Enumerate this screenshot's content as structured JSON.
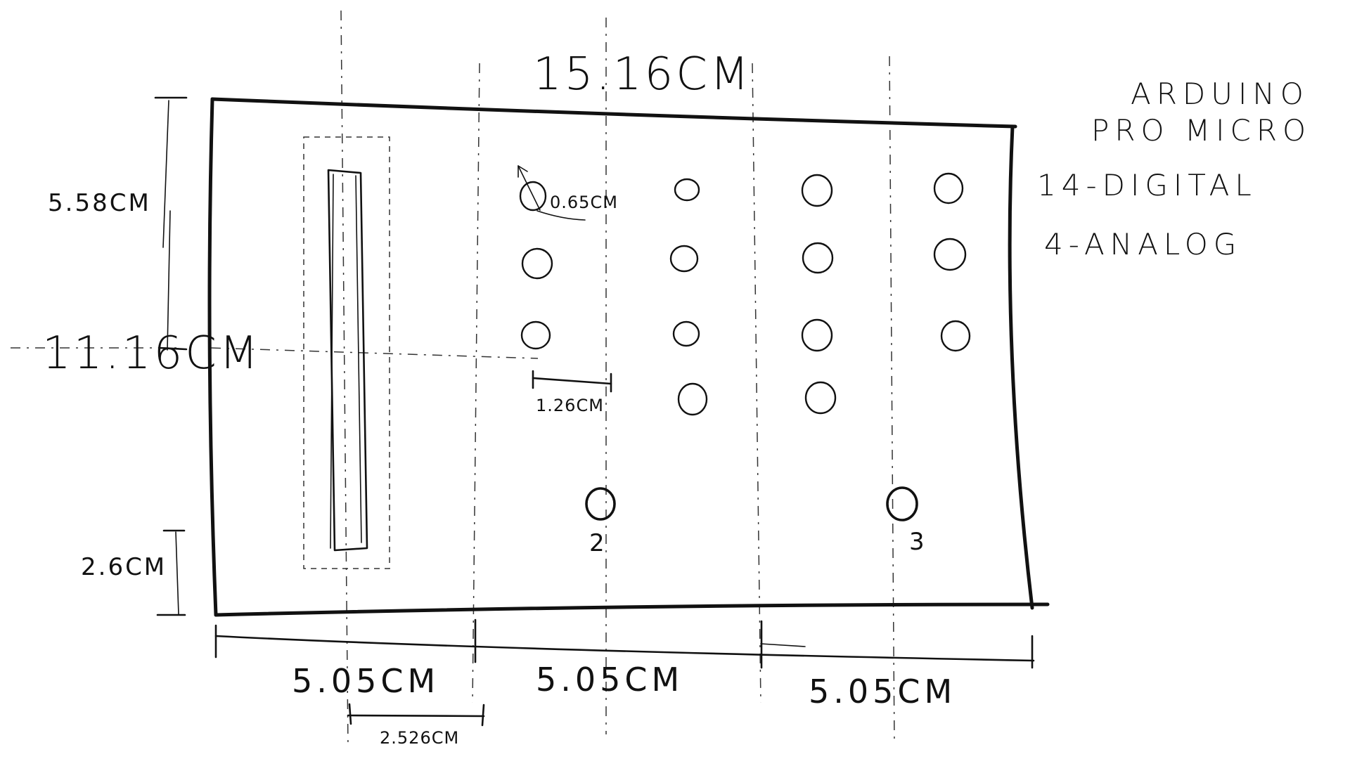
{
  "diagram": {
    "labels": {
      "total_width": "15.16CM",
      "total_height": "11.16CM",
      "top_offset": "5.58CM",
      "bottom_offset": "2.6CM",
      "hole_diameter": "0.65CM",
      "hole_spacing": "1.26CM",
      "section_left": "5.05CM",
      "section_mid": "5.05CM",
      "section_right": "5.05CM",
      "half_section": "2.526CM",
      "mark_2": "2",
      "mark_3": "3"
    },
    "notes": {
      "line1": "ARDUINO",
      "line2": "PRO MICRO",
      "line3": "14-DIGITAL",
      "line4": "4-ANALOG"
    }
  }
}
